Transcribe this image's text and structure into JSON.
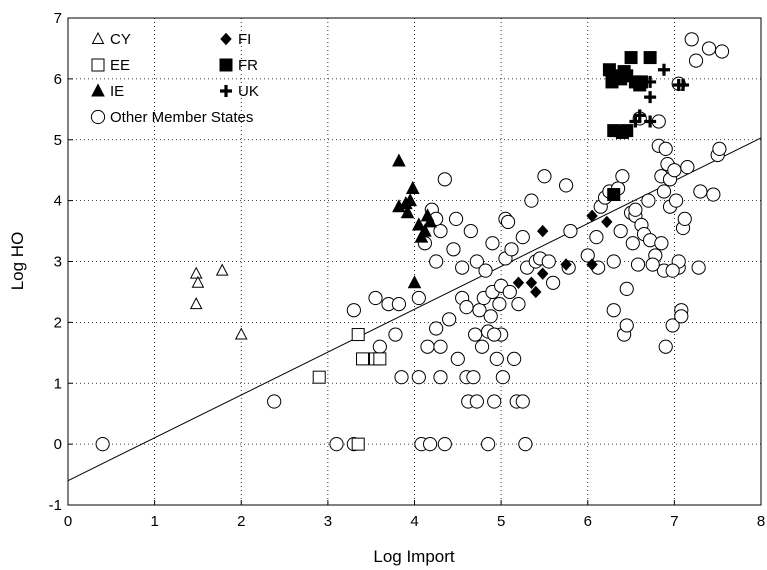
{
  "chart_data": {
    "type": "scatter",
    "title": "",
    "xlabel": "Log Import",
    "ylabel": "Log HO",
    "xlim": [
      0,
      8
    ],
    "ylim": [
      -1,
      7
    ],
    "xticks": [
      "0",
      "1",
      "2",
      "3",
      "4",
      "5",
      "6",
      "7",
      "8"
    ],
    "yticks": [
      "-1",
      "0",
      "1",
      "2",
      "3",
      "4",
      "5",
      "6",
      "7"
    ],
    "grid": "dotted",
    "legend_position": "top-left",
    "fit_line": {
      "x": [
        0,
        8
      ],
      "y": [
        -0.6,
        5.03
      ]
    },
    "series": [
      {
        "name": "CY",
        "marker": "open-triangle",
        "points": [
          [
            1.48,
            2.8
          ],
          [
            1.5,
            2.65
          ],
          [
            1.48,
            2.3
          ],
          [
            1.78,
            2.85
          ],
          [
            2.0,
            1.8
          ]
        ]
      },
      {
        "name": "EE",
        "marker": "open-square",
        "points": [
          [
            2.9,
            1.1
          ],
          [
            3.35,
            1.8
          ],
          [
            3.4,
            1.4
          ],
          [
            3.55,
            1.4
          ],
          [
            3.6,
            1.4
          ],
          [
            3.35,
            0.0
          ]
        ]
      },
      {
        "name": "IE",
        "marker": "filled-triangle",
        "points": [
          [
            3.82,
            4.65
          ],
          [
            3.82,
            3.9
          ],
          [
            3.9,
            3.95
          ],
          [
            3.92,
            3.8
          ],
          [
            3.98,
            4.2
          ],
          [
            3.95,
            4.0
          ],
          [
            4.05,
            3.6
          ],
          [
            4.08,
            3.4
          ],
          [
            4.12,
            3.5
          ],
          [
            4.15,
            3.75
          ],
          [
            4.18,
            3.65
          ],
          [
            4.0,
            2.65
          ]
        ]
      },
      {
        "name": "FI",
        "marker": "filled-diamond",
        "points": [
          [
            5.2,
            2.65
          ],
          [
            5.35,
            2.65
          ],
          [
            5.4,
            2.5
          ],
          [
            5.48,
            2.8
          ],
          [
            5.48,
            3.5
          ],
          [
            5.75,
            2.95
          ],
          [
            6.05,
            3.75
          ],
          [
            6.05,
            2.95
          ],
          [
            6.22,
            3.65
          ]
        ]
      },
      {
        "name": "FR",
        "marker": "filled-square",
        "points": [
          [
            6.25,
            6.15
          ],
          [
            6.28,
            5.95
          ],
          [
            6.35,
            6.05
          ],
          [
            6.38,
            6.0
          ],
          [
            6.42,
            6.12
          ],
          [
            6.45,
            6.05
          ],
          [
            6.5,
            6.35
          ],
          [
            6.55,
            5.95
          ],
          [
            6.6,
            5.9
          ],
          [
            6.62,
            5.95
          ],
          [
            6.72,
            6.35
          ],
          [
            6.3,
            5.15
          ],
          [
            6.4,
            5.12
          ],
          [
            6.45,
            5.15
          ],
          [
            6.3,
            4.1
          ]
        ]
      },
      {
        "name": "UK",
        "marker": "plus",
        "points": [
          [
            6.88,
            6.15
          ],
          [
            6.72,
            5.95
          ],
          [
            6.72,
            5.7
          ],
          [
            7.05,
            5.9
          ],
          [
            7.1,
            5.9
          ],
          [
            6.6,
            5.4
          ],
          [
            6.55,
            5.3
          ],
          [
            6.72,
            5.3
          ]
        ]
      },
      {
        "name": "Other Member States",
        "marker": "open-circle",
        "points": [
          [
            0.4,
            0.0
          ],
          [
            2.38,
            0.7
          ],
          [
            3.1,
            0.0
          ],
          [
            3.3,
            0.0
          ],
          [
            3.3,
            2.2
          ],
          [
            3.55,
            2.4
          ],
          [
            3.6,
            1.6
          ],
          [
            3.7,
            2.3
          ],
          [
            3.78,
            1.8
          ],
          [
            3.82,
            2.3
          ],
          [
            3.85,
            1.1
          ],
          [
            4.05,
            1.1
          ],
          [
            4.05,
            2.4
          ],
          [
            4.08,
            0.0
          ],
          [
            4.12,
            3.3
          ],
          [
            4.15,
            1.6
          ],
          [
            4.18,
            0.0
          ],
          [
            4.2,
            3.85
          ],
          [
            4.25,
            3.0
          ],
          [
            4.25,
            1.9
          ],
          [
            4.3,
            1.1
          ],
          [
            4.3,
            1.6
          ],
          [
            4.35,
            0.0
          ],
          [
            4.35,
            4.35
          ],
          [
            4.4,
            2.05
          ],
          [
            4.45,
            3.2
          ],
          [
            4.48,
            3.7
          ],
          [
            4.5,
            1.4
          ],
          [
            4.55,
            2.4
          ],
          [
            4.55,
            2.9
          ],
          [
            4.6,
            2.25
          ],
          [
            4.6,
            1.1
          ],
          [
            4.62,
            0.7
          ],
          [
            4.65,
            3.5
          ],
          [
            4.68,
            1.1
          ],
          [
            4.7,
            1.8
          ],
          [
            4.72,
            3.0
          ],
          [
            4.72,
            0.7
          ],
          [
            4.75,
            2.2
          ],
          [
            4.78,
            1.6
          ],
          [
            4.8,
            2.4
          ],
          [
            4.82,
            2.85
          ],
          [
            4.85,
            1.85
          ],
          [
            4.85,
            0.0
          ],
          [
            4.88,
            2.1
          ],
          [
            4.9,
            2.5
          ],
          [
            4.9,
            3.3
          ],
          [
            4.92,
            0.7
          ],
          [
            4.95,
            1.4
          ],
          [
            4.98,
            2.3
          ],
          [
            5.0,
            2.6
          ],
          [
            5.02,
            1.1
          ],
          [
            5.05,
            3.05
          ],
          [
            5.05,
            3.7
          ],
          [
            5.08,
            3.65
          ],
          [
            5.1,
            2.5
          ],
          [
            5.12,
            3.2
          ],
          [
            5.15,
            1.4
          ],
          [
            5.18,
            0.7
          ],
          [
            5.2,
            2.3
          ],
          [
            5.25,
            3.4
          ],
          [
            5.25,
            0.7
          ],
          [
            5.28,
            0.0
          ],
          [
            5.3,
            2.9
          ],
          [
            5.35,
            4.0
          ],
          [
            5.4,
            3.0
          ],
          [
            5.45,
            3.05
          ],
          [
            5.5,
            4.4
          ],
          [
            5.55,
            3.0
          ],
          [
            5.6,
            2.65
          ],
          [
            5.75,
            4.25
          ],
          [
            5.78,
            2.9
          ],
          [
            5.8,
            3.5
          ],
          [
            6.0,
            3.1
          ],
          [
            6.1,
            3.4
          ],
          [
            6.12,
            2.9
          ],
          [
            6.15,
            3.9
          ],
          [
            6.2,
            4.05
          ],
          [
            6.25,
            4.15
          ],
          [
            6.3,
            3.0
          ],
          [
            6.3,
            2.2
          ],
          [
            6.35,
            4.2
          ],
          [
            6.38,
            3.5
          ],
          [
            6.4,
            4.4
          ],
          [
            6.42,
            1.8
          ],
          [
            6.45,
            2.55
          ],
          [
            6.45,
            1.95
          ],
          [
            6.5,
            3.8
          ],
          [
            6.52,
            3.3
          ],
          [
            6.55,
            3.75
          ],
          [
            6.58,
            2.95
          ],
          [
            6.6,
            5.35
          ],
          [
            6.62,
            3.6
          ],
          [
            6.65,
            3.45
          ],
          [
            6.7,
            4.0
          ],
          [
            6.72,
            3.35
          ],
          [
            6.78,
            3.1
          ],
          [
            6.82,
            5.3
          ],
          [
            6.82,
            4.9
          ],
          [
            6.85,
            4.4
          ],
          [
            6.85,
            3.3
          ],
          [
            6.88,
            4.15
          ],
          [
            6.88,
            2.85
          ],
          [
            6.9,
            4.85
          ],
          [
            6.9,
            1.6
          ],
          [
            6.92,
            4.6
          ],
          [
            6.95,
            4.35
          ],
          [
            6.95,
            3.9
          ],
          [
            6.98,
            1.95
          ],
          [
            7.0,
            4.5
          ],
          [
            7.02,
            4.0
          ],
          [
            7.05,
            2.9
          ],
          [
            7.05,
            3.0
          ],
          [
            7.08,
            2.2
          ],
          [
            7.1,
            3.55
          ],
          [
            7.12,
            3.7
          ],
          [
            7.15,
            4.55
          ],
          [
            7.2,
            6.65
          ],
          [
            7.25,
            6.3
          ],
          [
            7.28,
            2.9
          ],
          [
            7.3,
            4.15
          ],
          [
            7.4,
            6.5
          ],
          [
            7.45,
            4.1
          ],
          [
            7.5,
            4.75
          ],
          [
            7.52,
            4.85
          ],
          [
            7.55,
            6.45
          ],
          [
            7.05,
            5.92
          ],
          [
            7.08,
            2.1
          ],
          [
            6.98,
            2.85
          ],
          [
            6.55,
            3.85
          ],
          [
            5.0,
            1.8
          ],
          [
            4.92,
            1.8
          ],
          [
            4.3,
            3.5
          ],
          [
            4.25,
            3.7
          ],
          [
            6.75,
            2.95
          ]
        ]
      }
    ]
  }
}
